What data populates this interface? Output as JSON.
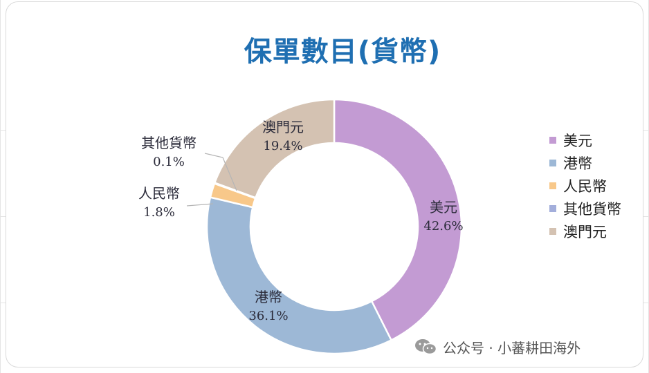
{
  "chart_data": {
    "type": "pie",
    "title": "保單數目(貨幣)",
    "categories": [
      "美元",
      "港幣",
      "人民幣",
      "其他貨幣",
      "澳門元"
    ],
    "values": [
      42.6,
      36.1,
      1.8,
      0.1,
      19.4
    ],
    "value_labels": [
      "42.6%",
      "36.1%",
      "1.8%",
      "0.1%",
      "19.4%"
    ],
    "colors": [
      "#c39bd3",
      "#9db8d6",
      "#f8c88a",
      "#a3aedb",
      "#d4c2b2"
    ],
    "legend_position": "right",
    "donut": true
  },
  "watermark": {
    "text": "公众号 · 小蕃耕田海外",
    "icon": "wechat-icon"
  }
}
